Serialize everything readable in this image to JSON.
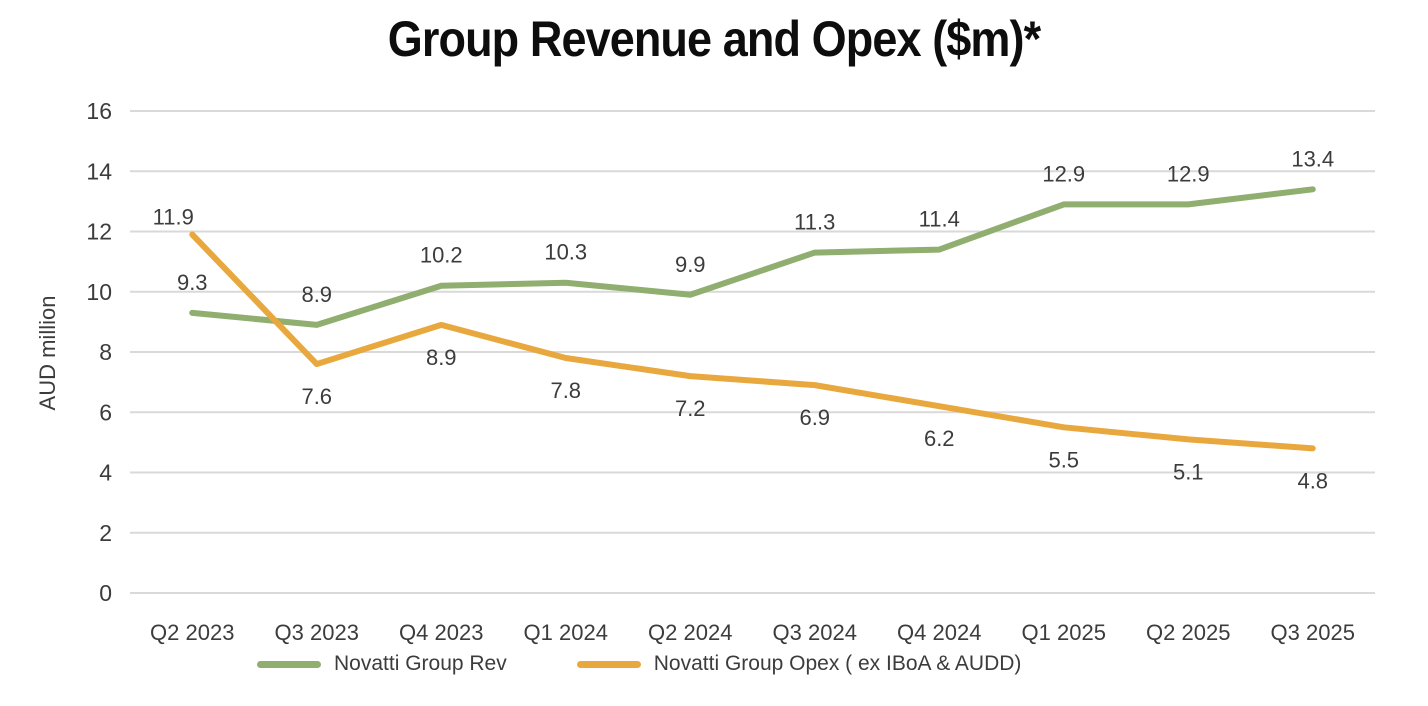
{
  "title": "Group Revenue and Opex ($m)*",
  "colors": {
    "revenue_line": "#8fae6f",
    "opex_line": "#e9a83e",
    "gridline": "#d9d9d9",
    "tick_text": "#3c3c3c",
    "data_label_text": "#3c3c3c",
    "title_text": "#0d0d0d",
    "background": "#ffffff"
  },
  "legend": {
    "position": "bottom",
    "items": [
      {
        "label": "Novatti Group Rev",
        "color": "#8fae6f"
      },
      {
        "label": "Novatti Group Opex ( ex IBoA & AUDD)",
        "color": "#e9a83e"
      }
    ]
  },
  "chart_data": {
    "type": "line",
    "title": "Group Revenue and Opex ($m)*",
    "xlabel": "",
    "ylabel": "AUD million",
    "ylim": [
      0,
      16
    ],
    "ytick_step": 2,
    "yticks": [
      0,
      2,
      4,
      6,
      8,
      10,
      12,
      14,
      16
    ],
    "grid": "horizontal",
    "legend_position": "bottom",
    "categories": [
      "Q2 2023",
      "Q3 2023",
      "Q4 2023",
      "Q1 2024",
      "Q2 2024",
      "Q3 2024",
      "Q4 2024",
      "Q1 2025",
      "Q2 2025",
      "Q3 2025"
    ],
    "series": [
      {
        "name": "Novatti Group Rev",
        "color": "#8fae6f",
        "values": [
          9.3,
          8.9,
          10.2,
          10.3,
          9.9,
          11.3,
          11.4,
          12.9,
          12.9,
          13.4
        ],
        "label_position": "above",
        "label_position_overrides": {}
      },
      {
        "name": "Novatti Group Opex ( ex IBoA & AUDD)",
        "color": "#e9a83e",
        "values": [
          11.9,
          7.6,
          8.9,
          7.8,
          7.2,
          6.9,
          6.2,
          5.5,
          5.1,
          4.8
        ],
        "label_position": "below",
        "label_position_overrides": {
          "0": "above-left"
        }
      }
    ]
  }
}
